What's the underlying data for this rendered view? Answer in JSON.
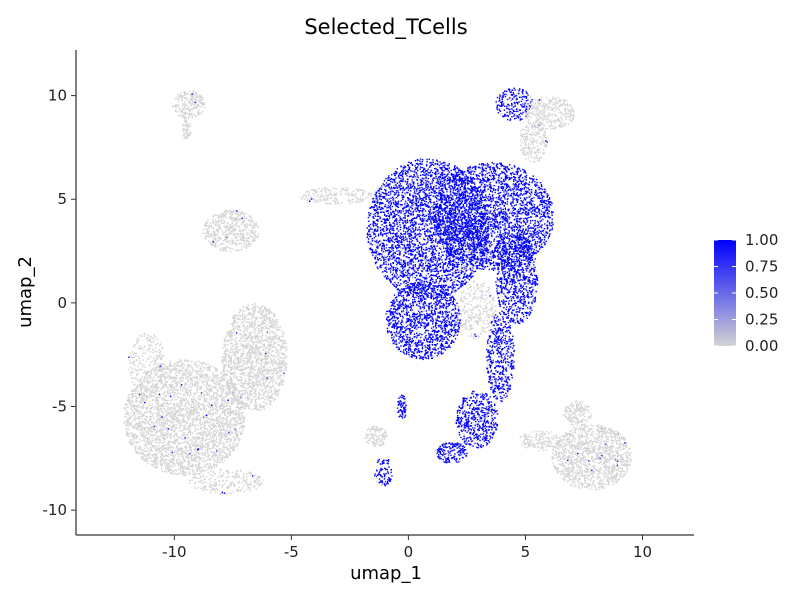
{
  "chart_data": {
    "type": "scatter",
    "title": "Selected_TCells",
    "xlabel": "umap_1",
    "ylabel": "umap_2",
    "xlim": [
      -14.2,
      12.2
    ],
    "ylim": [
      -11.2,
      12.2
    ],
    "x_ticks": [
      -10,
      -5,
      0,
      5,
      10
    ],
    "x_tick_labels": [
      "-10",
      "-5",
      "0",
      "5",
      "10"
    ],
    "y_ticks": [
      10,
      5,
      0,
      -5,
      -10
    ],
    "y_tick_labels": [
      "10",
      "5",
      "0",
      "-5",
      "-10"
    ],
    "grid": false,
    "legend": {
      "placement": "right",
      "type": "colorbar",
      "min": 0,
      "max": 1,
      "low_color": "#d3d3d3",
      "high_color": "#0000ff",
      "ticks": [
        1.0,
        0.75,
        0.5,
        0.25,
        0.0
      ],
      "tick_labels": [
        "1.00",
        "0.75",
        "0.50",
        "0.25",
        "0.00"
      ]
    },
    "clusters": [
      {
        "cx": -9.4,
        "cy": 9.6,
        "rx": 0.7,
        "ry": 0.7,
        "value": 0,
        "density": 0.9
      },
      {
        "cx": -9.5,
        "cy": 8.4,
        "rx": 0.2,
        "ry": 0.5,
        "value": 0,
        "density": 0.6
      },
      {
        "cx": -7.6,
        "cy": 3.5,
        "rx": 1.2,
        "ry": 1.0,
        "value": 0,
        "density": 0.9
      },
      {
        "cx": -3.1,
        "cy": 5.2,
        "rx": 1.6,
        "ry": 0.4,
        "value": 0,
        "density": 0.6
      },
      {
        "cx": -9.6,
        "cy": -5.5,
        "rx": 2.6,
        "ry": 2.8,
        "value": 0,
        "density": 1.0
      },
      {
        "cx": -6.6,
        "cy": -2.6,
        "rx": 1.4,
        "ry": 2.6,
        "value": 0,
        "density": 1.0
      },
      {
        "cx": -11.2,
        "cy": -3.0,
        "rx": 0.8,
        "ry": 1.6,
        "value": 0,
        "density": 0.4
      },
      {
        "cx": -7.8,
        "cy": -8.6,
        "rx": 1.6,
        "ry": 0.6,
        "value": 0,
        "density": 0.5
      },
      {
        "cx": 0.8,
        "cy": 3.6,
        "rx": 2.6,
        "ry": 3.4,
        "value": 1,
        "density": 1.0
      },
      {
        "cx": 3.6,
        "cy": 4.2,
        "rx": 2.6,
        "ry": 2.6,
        "value": 1,
        "density": 1.0
      },
      {
        "cx": 0.6,
        "cy": -0.8,
        "rx": 1.6,
        "ry": 1.9,
        "value": 1,
        "density": 1.0
      },
      {
        "cx": 4.6,
        "cy": 1.2,
        "rx": 0.9,
        "ry": 2.2,
        "value": 1,
        "density": 0.9
      },
      {
        "cx": 3.9,
        "cy": -2.6,
        "rx": 0.6,
        "ry": 2.2,
        "value": 1,
        "density": 0.8
      },
      {
        "cx": 2.9,
        "cy": -5.6,
        "rx": 0.9,
        "ry": 1.4,
        "value": 1,
        "density": 0.9
      },
      {
        "cx": 1.8,
        "cy": -7.2,
        "rx": 0.7,
        "ry": 0.5,
        "value": 1,
        "density": 0.9
      },
      {
        "cx": 2.9,
        "cy": -0.3,
        "rx": 0.8,
        "ry": 1.4,
        "value": 0,
        "density": 0.5
      },
      {
        "cx": 4.5,
        "cy": 9.6,
        "rx": 0.8,
        "ry": 0.8,
        "value": 1,
        "density": 0.7
      },
      {
        "cx": 6.0,
        "cy": 9.2,
        "rx": 1.1,
        "ry": 0.8,
        "value": 0,
        "density": 0.8
      },
      {
        "cx": 5.3,
        "cy": 7.8,
        "rx": 0.6,
        "ry": 1.0,
        "value": 0,
        "density": 0.7
      },
      {
        "cx": 7.8,
        "cy": -7.4,
        "rx": 1.7,
        "ry": 1.6,
        "value": 0,
        "density": 1.0
      },
      {
        "cx": 7.2,
        "cy": -5.3,
        "rx": 0.6,
        "ry": 0.6,
        "value": 0,
        "density": 0.8
      },
      {
        "cx": 5.6,
        "cy": -6.6,
        "rx": 0.9,
        "ry": 0.5,
        "value": 0,
        "density": 0.6
      },
      {
        "cx": -1.4,
        "cy": -6.4,
        "rx": 0.5,
        "ry": 0.5,
        "value": 0,
        "density": 0.8
      },
      {
        "cx": -0.3,
        "cy": -5.0,
        "rx": 0.2,
        "ry": 0.6,
        "value": 1,
        "density": 0.9
      },
      {
        "cx": -1.1,
        "cy": -8.1,
        "rx": 0.4,
        "ry": 0.7,
        "value": 1,
        "density": 0.5
      }
    ]
  }
}
